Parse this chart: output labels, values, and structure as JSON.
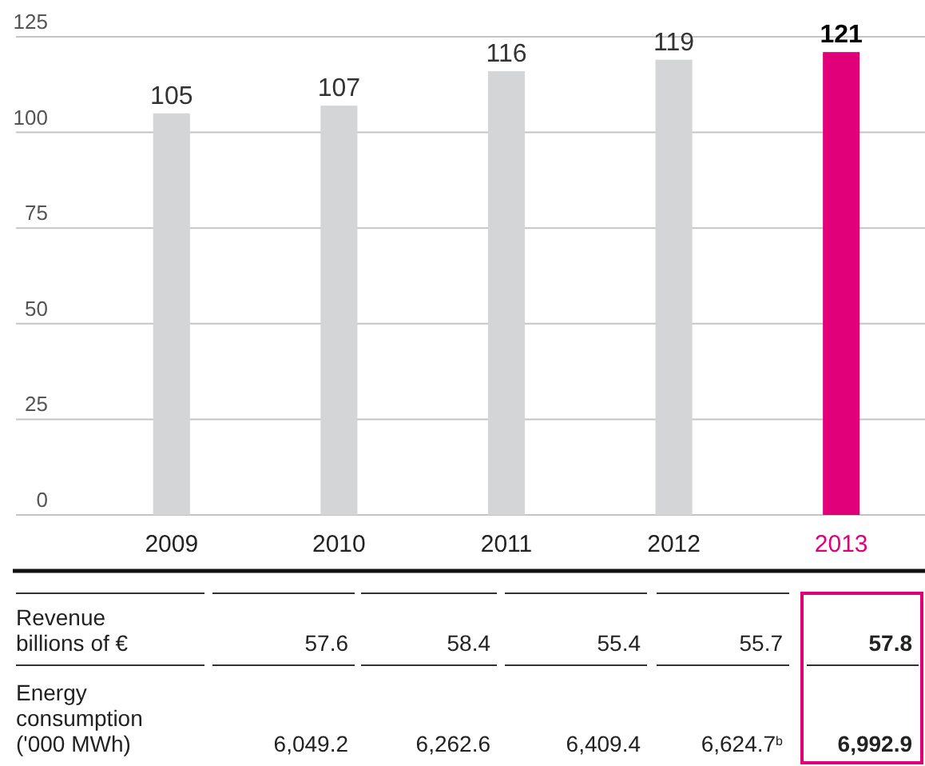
{
  "chart_data": [
    {
      "type": "bar",
      "categories": [
        "2009",
        "2010",
        "2011",
        "2012",
        "2013"
      ],
      "values": [
        105,
        107,
        116,
        119,
        121
      ],
      "colors": [
        "#d4d5d6",
        "#d4d5d6",
        "#d4d5d6",
        "#d4d5d6",
        "#e2007a"
      ],
      "ylim": [
        0,
        125
      ],
      "yticks": [
        0,
        25,
        50,
        75,
        100,
        125
      ],
      "grid": "y",
      "data_labels": true
    },
    {
      "type": "other",
      "annotations": [
        "Revenue billions of €",
        "57.6",
        "58.4",
        "55.4",
        "55.7",
        "57.8",
        "Energy consumption ('000 MWh)",
        "6,049.2",
        "6,262.6",
        "6,409.4",
        "6,624.7$^{b}$",
        "6,992.9"
      ]
    }
  ]
}
